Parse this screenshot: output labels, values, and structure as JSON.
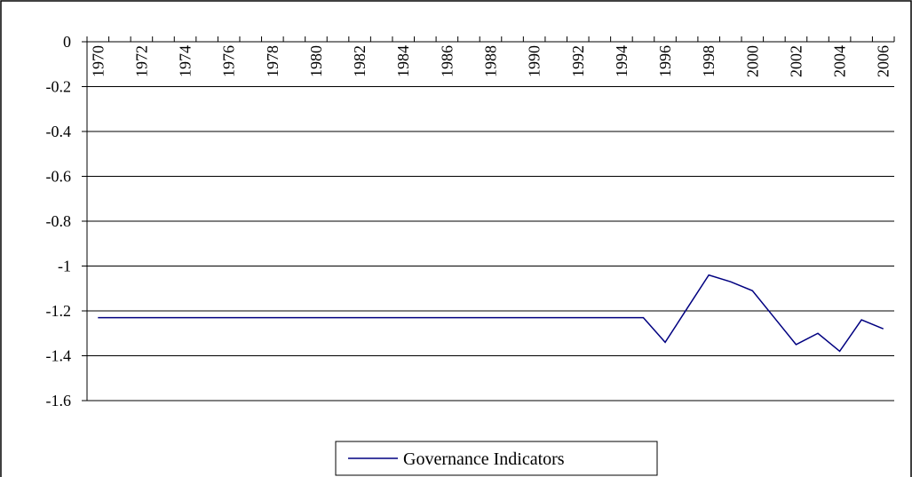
{
  "chart_data": {
    "type": "line",
    "categories": [
      "1970",
      null,
      "1972",
      null,
      "1974",
      null,
      "1976",
      null,
      "1978",
      null,
      "1980",
      null,
      "1982",
      null,
      "1984",
      null,
      "1986",
      null,
      "1988",
      null,
      "1990",
      null,
      "1992",
      null,
      "1994",
      null,
      "1996",
      null,
      "1998",
      null,
      "2000",
      null,
      "2002",
      null,
      "2004",
      null,
      "2006"
    ],
    "series": [
      {
        "name": "Governance Indicators",
        "color": "#000080",
        "values": [
          -1.23,
          -1.23,
          -1.23,
          -1.23,
          -1.23,
          -1.23,
          -1.23,
          -1.23,
          -1.23,
          -1.23,
          -1.23,
          -1.23,
          -1.23,
          -1.23,
          -1.23,
          -1.23,
          -1.23,
          -1.23,
          -1.23,
          -1.23,
          -1.23,
          -1.23,
          -1.23,
          -1.23,
          -1.23,
          -1.23,
          -1.34,
          -1.19,
          -1.04,
          -1.07,
          -1.11,
          -1.23,
          -1.35,
          -1.3,
          -1.38,
          -1.24,
          -1.28
        ]
      }
    ],
    "ylim": [
      -1.6,
      0
    ],
    "yticks": [
      0,
      -0.2,
      -0.4,
      -0.6,
      -0.8,
      -1,
      -1.2,
      -1.4,
      -1.6
    ],
    "grid": true,
    "legend": "bottom"
  }
}
